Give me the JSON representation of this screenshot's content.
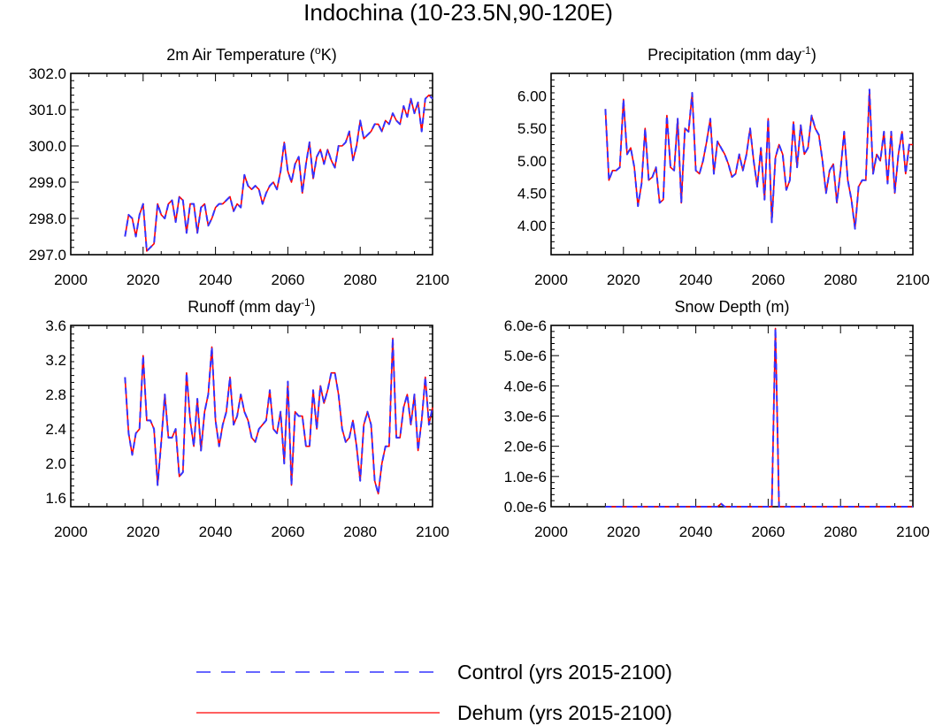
{
  "figure": {
    "title": "Indochina (10-23.5N,90-120E)"
  },
  "legend": {
    "items": [
      {
        "label": "Control (yrs 2015-2100)",
        "color": "#3333ff",
        "dash": "dashed"
      },
      {
        "label": "Dehum (yrs 2015-2100)",
        "color": "#ff0000",
        "dash": "solid"
      }
    ]
  },
  "chart_data": [
    {
      "type": "line",
      "title_main": "2m Air Temperature (",
      "title_sup": "o",
      "title_tail": "K)",
      "xlim": [
        2000,
        2100
      ],
      "ylim": [
        297.0,
        302.0
      ],
      "xticks": [
        "2000",
        "2020",
        "2040",
        "2060",
        "2080",
        "2100"
      ],
      "yticks": [
        "297.0",
        "298.0",
        "299.0",
        "300.0",
        "301.0",
        "302.0"
      ],
      "x_start": 2015,
      "series": [
        {
          "name": "Control (yrs 2015-2100)",
          "values": [
            297.5,
            298.1,
            298.0,
            297.5,
            298.1,
            298.4,
            297.1,
            297.2,
            297.3,
            298.4,
            298.1,
            298.0,
            298.4,
            298.5,
            297.9,
            298.6,
            298.5,
            297.6,
            298.4,
            298.4,
            297.6,
            298.3,
            298.4,
            297.8,
            298.0,
            298.3,
            298.4,
            298.4,
            298.5,
            298.6,
            298.2,
            298.4,
            298.3,
            299.2,
            298.9,
            298.8,
            298.9,
            298.8,
            298.4,
            298.7,
            298.9,
            299.0,
            298.8,
            299.3,
            300.1,
            299.3,
            299.0,
            299.5,
            299.7,
            298.7,
            299.5,
            300.1,
            299.1,
            299.7,
            299.9,
            299.5,
            299.9,
            299.6,
            299.4,
            300.0,
            300.0,
            300.1,
            300.4,
            299.6,
            300.0,
            300.7,
            300.2,
            300.3,
            300.4,
            300.6,
            300.6,
            300.4,
            300.7,
            300.6,
            300.9,
            300.7,
            300.6,
            301.1,
            300.8,
            301.3,
            300.9,
            301.2,
            300.4,
            301.3,
            301.4,
            301.3
          ]
        },
        {
          "name": "Dehum (yrs 2015-2100)",
          "values": [
            297.5,
            298.1,
            298.0,
            297.5,
            298.1,
            298.4,
            297.1,
            297.2,
            297.3,
            298.4,
            298.1,
            298.0,
            298.4,
            298.5,
            297.9,
            298.6,
            298.5,
            297.6,
            298.4,
            298.4,
            297.6,
            298.3,
            298.4,
            297.8,
            298.0,
            298.3,
            298.4,
            298.4,
            298.5,
            298.6,
            298.2,
            298.4,
            298.3,
            299.2,
            298.9,
            298.8,
            298.9,
            298.8,
            298.4,
            298.7,
            298.9,
            299.0,
            298.8,
            299.3,
            300.1,
            299.3,
            299.0,
            299.5,
            299.7,
            298.7,
            299.5,
            300.1,
            299.1,
            299.7,
            299.9,
            299.5,
            299.9,
            299.6,
            299.4,
            300.0,
            300.0,
            300.1,
            300.4,
            299.6,
            300.0,
            300.7,
            300.2,
            300.3,
            300.4,
            300.6,
            300.6,
            300.4,
            300.7,
            300.6,
            300.9,
            300.7,
            300.6,
            301.1,
            300.8,
            301.3,
            300.9,
            301.2,
            300.4,
            301.3,
            301.4,
            301.3
          ]
        }
      ]
    },
    {
      "type": "line",
      "title_main": "Precipitation (mm day",
      "title_sup": "-1",
      "title_tail": ")",
      "xlim": [
        2000,
        2100
      ],
      "ylim": [
        3.55,
        6.35
      ],
      "xticks": [
        "2000",
        "2020",
        "2040",
        "2060",
        "2080",
        "2100"
      ],
      "yticks": [
        "4.00",
        "4.50",
        "5.00",
        "5.50",
        "6.00"
      ],
      "ytick_values": [
        4.0,
        4.5,
        5.0,
        5.5,
        6.0
      ],
      "x_start": 2015,
      "series": [
        {
          "name": "Control (yrs 2015-2100)",
          "values": [
            5.8,
            4.7,
            4.85,
            4.85,
            4.9,
            5.95,
            5.1,
            5.2,
            4.9,
            4.3,
            4.65,
            5.5,
            4.7,
            4.75,
            4.9,
            4.35,
            4.4,
            5.7,
            4.9,
            4.85,
            5.65,
            4.35,
            5.5,
            5.45,
            6.05,
            4.85,
            4.8,
            5.0,
            5.3,
            5.65,
            4.8,
            5.3,
            5.2,
            5.1,
            4.95,
            4.75,
            4.8,
            5.1,
            4.85,
            5.1,
            5.5,
            5.0,
            4.6,
            5.2,
            4.4,
            5.65,
            4.05,
            5.05,
            5.25,
            5.1,
            4.55,
            4.7,
            5.6,
            4.9,
            5.55,
            5.1,
            5.2,
            5.7,
            5.5,
            5.4,
            5.0,
            4.5,
            4.85,
            4.95,
            4.35,
            4.85,
            5.45,
            4.7,
            4.4,
            3.95,
            4.6,
            4.7,
            4.7,
            6.1,
            4.8,
            5.1,
            5.0,
            5.45,
            4.65,
            5.45,
            4.5,
            5.1,
            5.45,
            4.8,
            5.25,
            5.25
          ]
        },
        {
          "name": "Dehum (yrs 2015-2100)",
          "values": [
            5.8,
            4.7,
            4.85,
            4.85,
            4.9,
            5.95,
            5.1,
            5.2,
            4.9,
            4.3,
            4.65,
            5.5,
            4.7,
            4.75,
            4.9,
            4.35,
            4.4,
            5.7,
            4.9,
            4.85,
            5.65,
            4.35,
            5.5,
            5.45,
            6.05,
            4.85,
            4.8,
            5.0,
            5.3,
            5.65,
            4.8,
            5.3,
            5.2,
            5.1,
            4.95,
            4.75,
            4.8,
            5.1,
            4.85,
            5.1,
            5.5,
            5.0,
            4.6,
            5.2,
            4.4,
            5.65,
            4.05,
            5.05,
            5.25,
            5.1,
            4.55,
            4.7,
            5.6,
            4.9,
            5.55,
            5.1,
            5.2,
            5.7,
            5.5,
            5.4,
            5.0,
            4.5,
            4.85,
            4.95,
            4.35,
            4.85,
            5.45,
            4.7,
            4.4,
            3.95,
            4.6,
            4.7,
            4.7,
            6.1,
            4.8,
            5.1,
            5.0,
            5.45,
            4.65,
            5.45,
            4.5,
            5.1,
            5.45,
            4.8,
            5.25,
            5.25
          ]
        }
      ]
    },
    {
      "type": "line",
      "title_main": "Runoff (mm day",
      "title_sup": "-1",
      "title_tail": ")",
      "xlim": [
        2000,
        2100
      ],
      "ylim": [
        1.5,
        3.6
      ],
      "xticks": [
        "2000",
        "2020",
        "2040",
        "2060",
        "2080",
        "2100"
      ],
      "yticks": [
        "1.6",
        "2.0",
        "2.4",
        "2.8",
        "3.2",
        "3.6"
      ],
      "ytick_values": [
        1.6,
        2.0,
        2.4,
        2.8,
        3.2,
        3.6
      ],
      "x_start": 2015,
      "series": [
        {
          "name": "Control (yrs 2015-2100)",
          "values": [
            3.0,
            2.35,
            2.1,
            2.35,
            2.4,
            3.25,
            2.5,
            2.5,
            2.4,
            1.75,
            2.25,
            2.8,
            2.3,
            2.3,
            2.4,
            1.85,
            1.9,
            3.05,
            2.5,
            2.2,
            2.75,
            2.15,
            2.6,
            2.8,
            3.35,
            2.5,
            2.2,
            2.45,
            2.6,
            3.0,
            2.45,
            2.55,
            2.8,
            2.6,
            2.5,
            2.3,
            2.25,
            2.4,
            2.45,
            2.5,
            2.85,
            2.4,
            2.35,
            2.6,
            2.0,
            2.95,
            1.75,
            2.6,
            2.55,
            2.55,
            2.2,
            2.2,
            2.85,
            2.4,
            2.9,
            2.7,
            2.85,
            3.05,
            3.05,
            2.8,
            2.4,
            2.25,
            2.3,
            2.5,
            2.2,
            1.8,
            2.45,
            2.6,
            2.45,
            1.8,
            1.65,
            2.0,
            2.2,
            2.2,
            3.45,
            2.3,
            2.3,
            2.65,
            2.8,
            2.45,
            2.8,
            2.15,
            2.5,
            3.0,
            2.45,
            2.65
          ]
        },
        {
          "name": "Dehum (yrs 2015-2100)",
          "values": [
            3.0,
            2.35,
            2.1,
            2.35,
            2.4,
            3.25,
            2.5,
            2.5,
            2.4,
            1.75,
            2.25,
            2.8,
            2.3,
            2.3,
            2.4,
            1.85,
            1.9,
            3.05,
            2.5,
            2.2,
            2.75,
            2.15,
            2.6,
            2.8,
            3.35,
            2.5,
            2.2,
            2.45,
            2.6,
            3.0,
            2.45,
            2.55,
            2.8,
            2.6,
            2.5,
            2.3,
            2.25,
            2.4,
            2.45,
            2.5,
            2.85,
            2.4,
            2.35,
            2.6,
            2.0,
            2.95,
            1.75,
            2.6,
            2.55,
            2.55,
            2.2,
            2.2,
            2.85,
            2.4,
            2.9,
            2.7,
            2.85,
            3.05,
            3.05,
            2.8,
            2.4,
            2.25,
            2.3,
            2.5,
            2.2,
            1.8,
            2.45,
            2.6,
            2.45,
            1.8,
            1.65,
            2.0,
            2.2,
            2.2,
            3.45,
            2.3,
            2.3,
            2.65,
            2.8,
            2.45,
            2.8,
            2.15,
            2.5,
            3.0,
            2.45,
            2.65
          ]
        }
      ]
    },
    {
      "type": "line",
      "title_main": "Snow Depth (m)",
      "title_sup": "",
      "title_tail": "",
      "xlim": [
        2000,
        2100
      ],
      "ylim": [
        0,
        6e-06
      ],
      "xticks": [
        "2000",
        "2020",
        "2040",
        "2060",
        "2080",
        "2100"
      ],
      "yticks": [
        "0.0e-6",
        "1.0e-6",
        "2.0e-6",
        "3.0e-6",
        "4.0e-6",
        "5.0e-6",
        "6.0e-6"
      ],
      "ytick_values": [
        0,
        1e-06,
        2e-06,
        3e-06,
        4e-06,
        5e-06,
        6e-06
      ],
      "x_start": 2015,
      "series": [
        {
          "name": "Control (yrs 2015-2100)",
          "values": [
            0,
            0,
            0,
            0,
            0,
            0,
            0,
            0,
            0,
            0,
            0,
            0,
            0,
            0,
            0,
            0,
            0,
            0,
            0,
            0,
            0,
            0,
            0,
            0,
            0,
            0,
            0,
            0,
            0,
            0,
            0,
            0,
            1e-07,
            0,
            0,
            0,
            0,
            0,
            0,
            0,
            0,
            0,
            0,
            0,
            0,
            0,
            0,
            5.9e-06,
            0,
            0,
            0,
            0,
            0,
            0,
            0,
            0,
            0,
            0,
            0,
            0,
            0,
            0,
            0,
            0,
            0,
            0,
            0,
            0,
            0,
            0,
            0,
            0,
            0,
            0,
            0,
            0,
            0,
            0,
            0,
            0,
            0,
            0,
            0,
            0,
            0,
            0
          ]
        },
        {
          "name": "Dehum (yrs 2015-2100)",
          "values": [
            0,
            0,
            0,
            0,
            0,
            0,
            0,
            0,
            0,
            0,
            0,
            0,
            0,
            0,
            0,
            0,
            0,
            0,
            0,
            0,
            0,
            0,
            0,
            0,
            0,
            0,
            0,
            0,
            0,
            0,
            0,
            0,
            1e-07,
            0,
            0,
            0,
            0,
            0,
            0,
            0,
            0,
            0,
            0,
            0,
            0,
            0,
            0,
            5.9e-06,
            0,
            0,
            0,
            0,
            0,
            0,
            0,
            0,
            0,
            0,
            0,
            0,
            0,
            0,
            0,
            0,
            0,
            0,
            0,
            0,
            0,
            0,
            0,
            0,
            0,
            0,
            0,
            0,
            0,
            0,
            0,
            0,
            0,
            0,
            0,
            0,
            0,
            0
          ]
        }
      ]
    }
  ]
}
